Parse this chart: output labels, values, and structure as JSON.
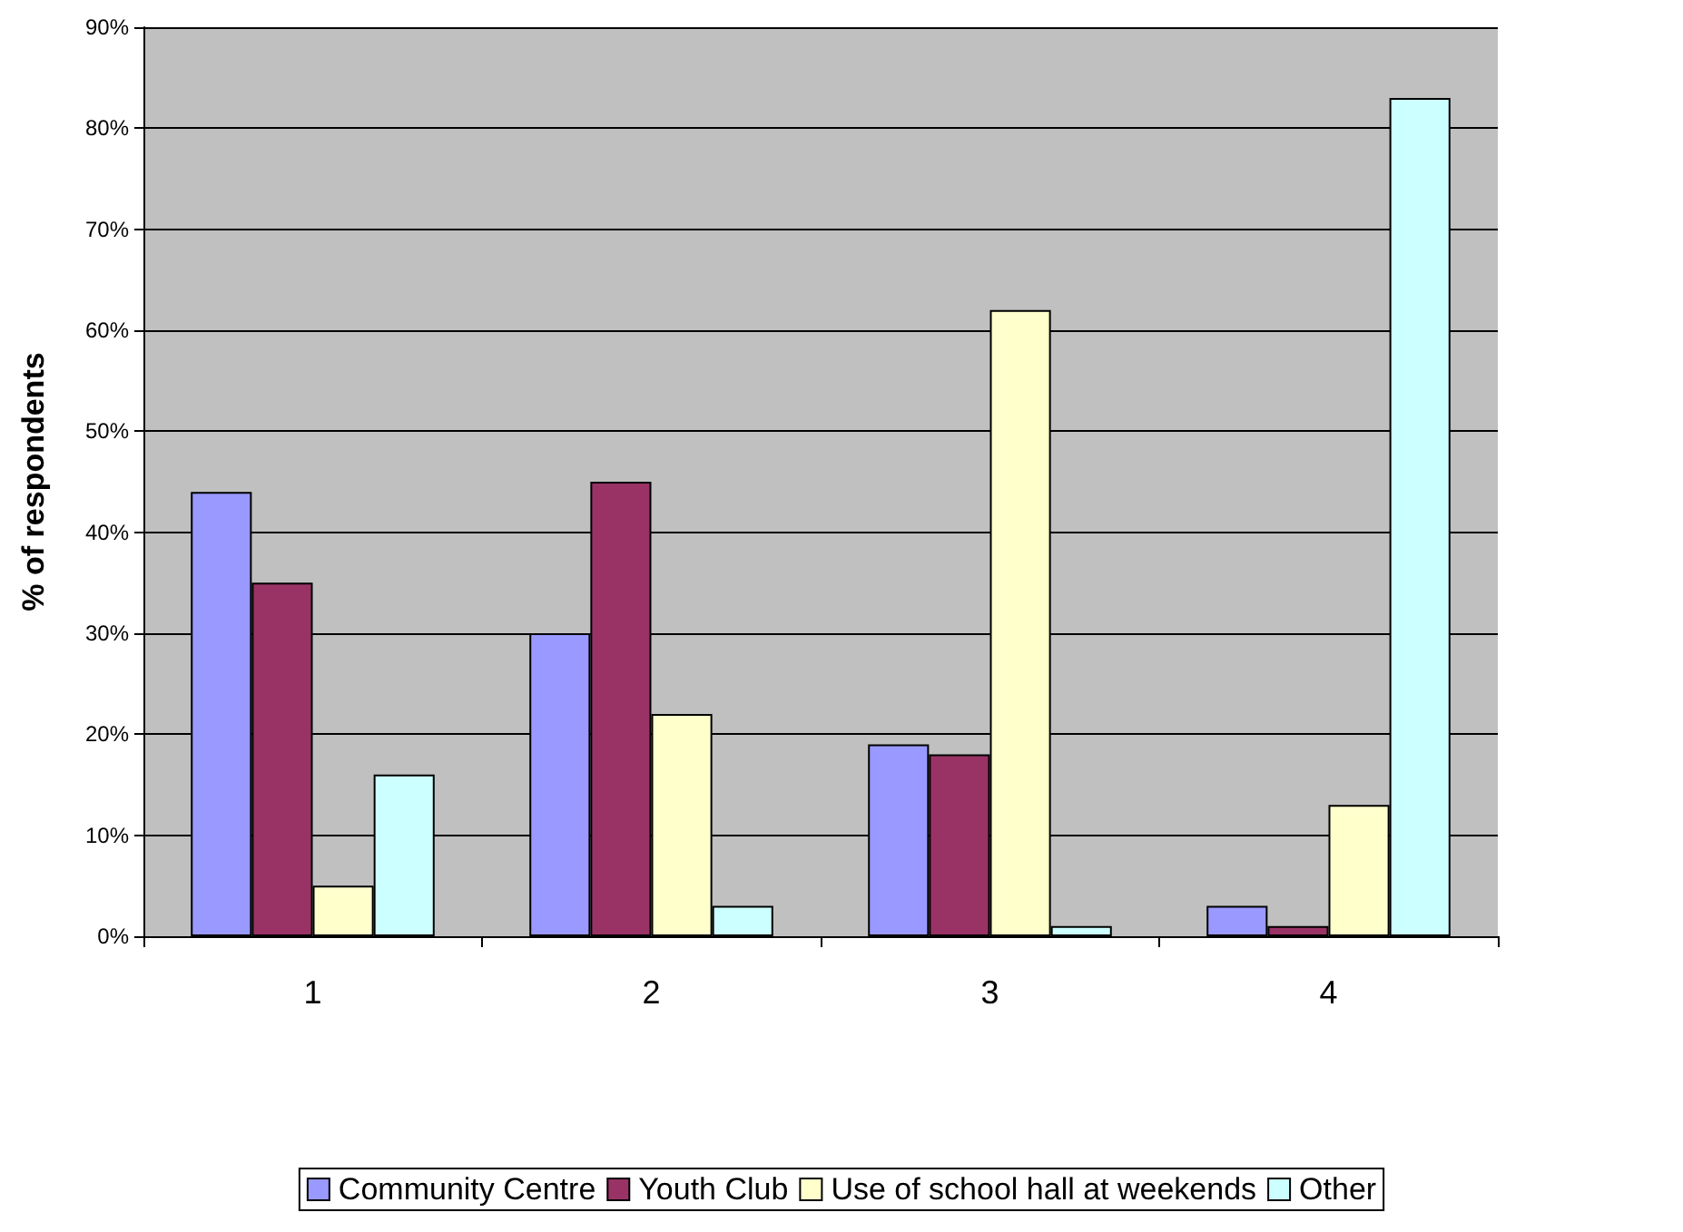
{
  "chart_data": {
    "type": "bar",
    "ylabel": "% of respondents",
    "categories": [
      "1",
      "2",
      "3",
      "4"
    ],
    "series": [
      {
        "name": "Community Centre",
        "color": "#9999ff",
        "values": [
          44,
          30,
          19,
          3
        ]
      },
      {
        "name": "Youth Club",
        "color": "#993366",
        "values": [
          35,
          45,
          18,
          1
        ]
      },
      {
        "name": "Use of school hall at weekends",
        "color": "#ffffcc",
        "values": [
          5,
          22,
          62,
          13
        ]
      },
      {
        "name": "Other",
        "color": "#ccffff",
        "values": [
          16,
          3,
          1,
          83
        ]
      }
    ],
    "ylim": [
      0,
      90
    ],
    "yticks": [
      {
        "value": 0,
        "label": "0%"
      },
      {
        "value": 10,
        "label": "10%"
      },
      {
        "value": 20,
        "label": "20%"
      },
      {
        "value": 30,
        "label": "30%"
      },
      {
        "value": 40,
        "label": "40%"
      },
      {
        "value": 50,
        "label": "50%"
      },
      {
        "value": 60,
        "label": "60%"
      },
      {
        "value": 70,
        "label": "70%"
      },
      {
        "value": 80,
        "label": "80%"
      },
      {
        "value": 90,
        "label": "90%"
      }
    ],
    "grid": "y",
    "legend": "bottom"
  }
}
